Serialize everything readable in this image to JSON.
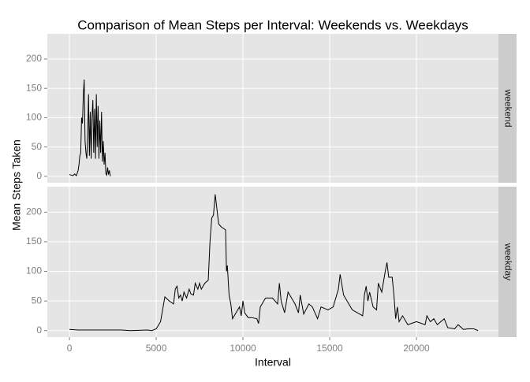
{
  "chart_data": {
    "type": "line",
    "title": "Comparison of Mean Steps per Interval: Weekends vs. Weekdays",
    "xlabel": "Interval",
    "ylabel": "Mean Steps Taken",
    "color": "#000000",
    "grid": true,
    "xlim": [
      -1275,
      24725
    ],
    "xticks": [
      0,
      5000,
      10000,
      15000,
      20000
    ],
    "ylim": [
      -11,
      243
    ],
    "yticks": [
      0,
      50,
      100,
      150,
      200
    ],
    "panels": [
      {
        "label": "weekend",
        "x": [
          0,
          100,
          200,
          300,
          400,
          500,
          550,
          600,
          650,
          700,
          750,
          800,
          850,
          900,
          950,
          1000,
          1050,
          1100,
          1150,
          1200,
          1250,
          1300,
          1350,
          1400,
          1450,
          1500,
          1550,
          1600,
          1650,
          1700,
          1750,
          1800,
          1850,
          1900,
          1950,
          2000,
          2050,
          2100,
          2150,
          2200,
          2250,
          2300,
          2355
        ],
        "values": [
          3,
          2,
          1,
          4,
          1,
          10,
          20,
          35,
          40,
          100,
          90,
          140,
          165,
          60,
          40,
          30,
          70,
          140,
          35,
          110,
          30,
          100,
          130,
          40,
          115,
          30,
          140,
          50,
          120,
          30,
          95,
          40,
          110,
          25,
          60,
          20,
          40,
          5,
          2,
          15,
          3,
          10,
          0
        ]
      },
      {
        "label": "weekday",
        "x": [
          0,
          500,
          1000,
          1500,
          2000,
          2500,
          3000,
          3500,
          4000,
          4500,
          4750,
          5000,
          5250,
          5500,
          5750,
          6000,
          6100,
          6200,
          6300,
          6400,
          6500,
          6600,
          6750,
          6900,
          7000,
          7150,
          7250,
          7400,
          7500,
          7600,
          7800,
          8000,
          8100,
          8200,
          8300,
          8400,
          8500,
          8600,
          8750,
          9000,
          9050,
          9100,
          9200,
          9300,
          9400,
          9600,
          9800,
          9900,
          10000,
          10100,
          10300,
          10500,
          10800,
          10900,
          11000,
          11300,
          11700,
          12000,
          12100,
          12200,
          12400,
          12600,
          12800,
          13000,
          13200,
          13300,
          13500,
          13800,
          14000,
          14300,
          14500,
          14900,
          15200,
          15500,
          15600,
          15800,
          16000,
          16300,
          16600,
          16900,
          17000,
          17100,
          17200,
          17300,
          17500,
          17700,
          17800,
          18000,
          18200,
          18300,
          18400,
          18600,
          18700,
          18800,
          18900,
          19000,
          19200,
          19500,
          20000,
          20500,
          20600,
          20800,
          21000,
          21200,
          21600,
          21800,
          22200,
          22400,
          22700,
          23000,
          23300,
          23550
        ],
        "values": [
          2,
          1,
          1,
          1,
          1,
          1,
          1,
          0,
          0.5,
          1,
          0,
          3,
          15,
          57,
          50,
          45,
          70,
          75,
          55,
          60,
          50,
          65,
          55,
          70,
          62,
          60,
          80,
          70,
          80,
          70,
          80,
          85,
          150,
          190,
          195,
          230,
          205,
          180,
          175,
          170,
          100,
          110,
          60,
          45,
          20,
          30,
          40,
          25,
          50,
          30,
          22,
          22,
          20,
          12,
          40,
          55,
          55,
          45,
          80,
          50,
          30,
          65,
          55,
          45,
          30,
          60,
          28,
          45,
          40,
          20,
          40,
          35,
          40,
          70,
          95,
          60,
          50,
          35,
          30,
          25,
          60,
          75,
          50,
          65,
          40,
          35,
          80,
          65,
          100,
          115,
          90,
          90,
          60,
          20,
          40,
          15,
          25,
          10,
          15,
          10,
          25,
          15,
          20,
          10,
          20,
          5,
          3,
          10,
          2,
          3,
          3,
          0
        ]
      }
    ]
  }
}
